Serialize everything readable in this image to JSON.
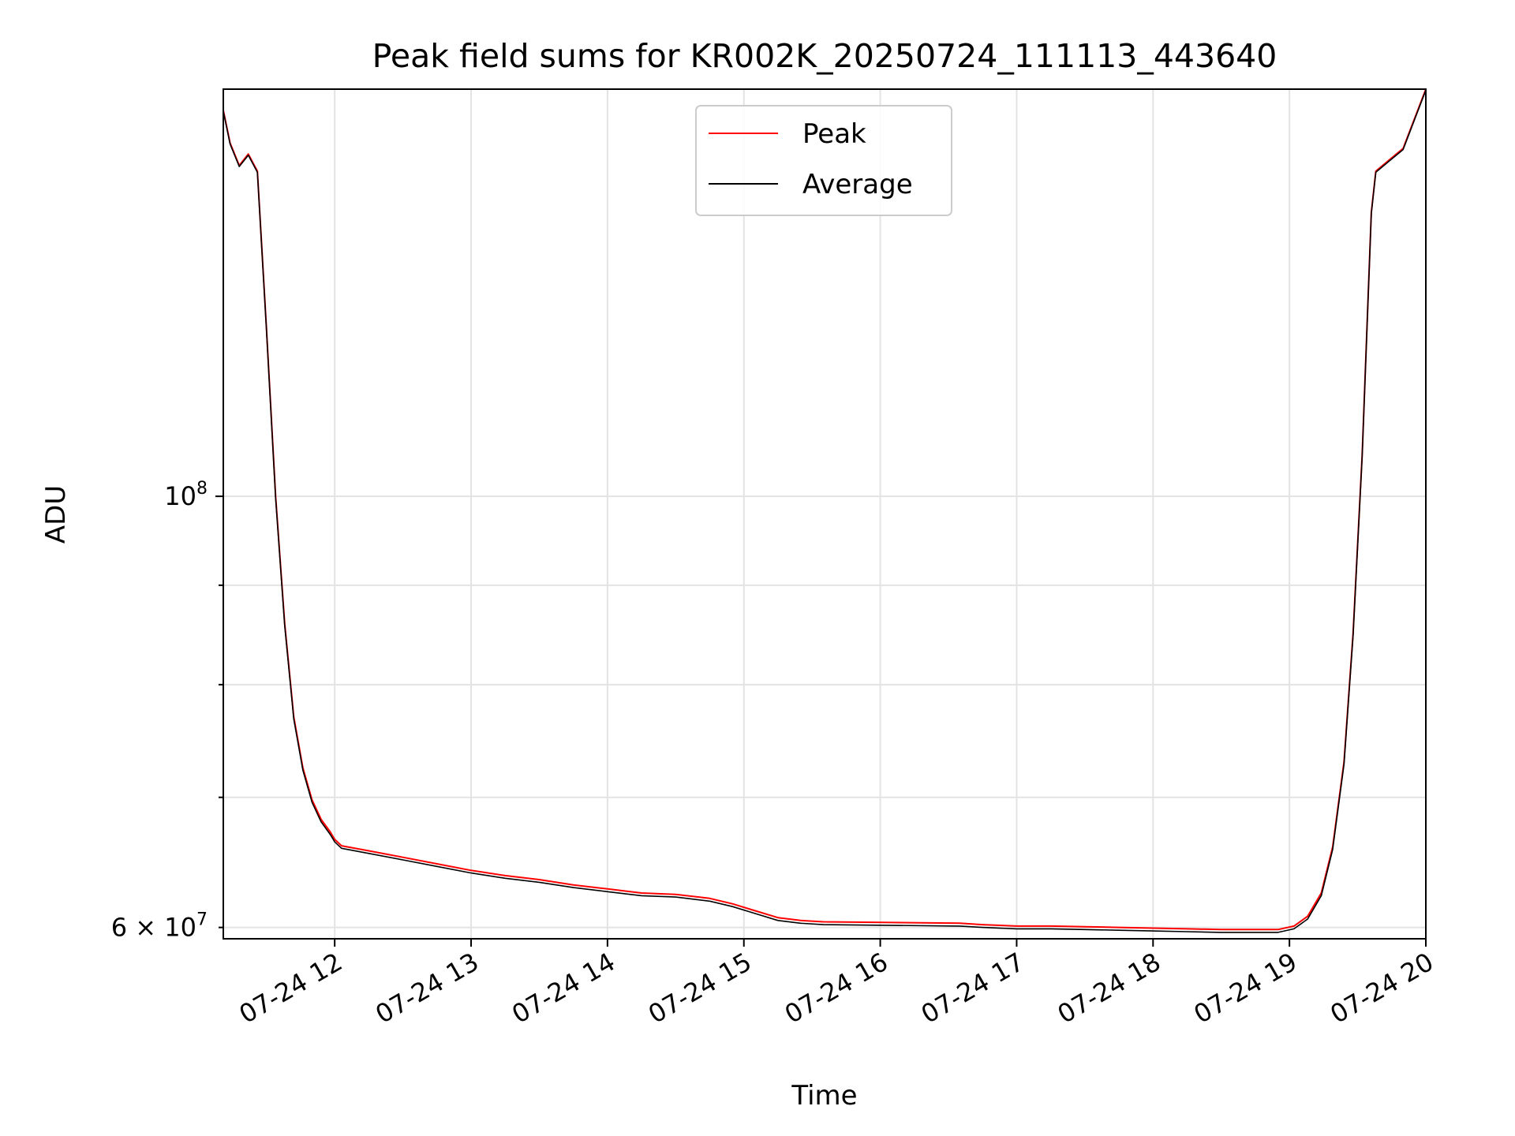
{
  "chart_data": {
    "type": "line",
    "title": "Peak field sums for KR002K_20250724_111113_443640",
    "xlabel": "Time",
    "ylabel": "ADU",
    "y_scale": "log",
    "ylim": [
      59200000,
      162000000
    ],
    "xlim": [
      "2025-07-24 11:11",
      "2025-07-24 20:00"
    ],
    "grid": true,
    "legend_position": "upper center",
    "x_tick_labels": [
      "07-24 12",
      "07-24 13",
      "07-24 14",
      "07-24 15",
      "07-24 16",
      "07-24 17",
      "07-24 18",
      "07-24 19",
      "07-24 20"
    ],
    "y_tick_labels": {
      "major": {
        "base": "10",
        "exp": "8"
      },
      "minor": {
        "mantissa": "6",
        "base": "10",
        "exp": "7"
      }
    },
    "series": [
      {
        "name": "Peak",
        "color": "#ff0000",
        "x": [
          "07-24 11:11",
          "07-24 11:14",
          "07-24 11:18",
          "07-24 11:22",
          "07-24 11:26",
          "07-24 11:30",
          "07-24 11:34",
          "07-24 11:38",
          "07-24 11:42",
          "07-24 11:46",
          "07-24 11:50",
          "07-24 11:54",
          "07-24 11:58",
          "07-24 12:00",
          "07-24 12:03",
          "07-24 12:15",
          "07-24 12:30",
          "07-24 12:45",
          "07-24 13:00",
          "07-24 13:15",
          "07-24 13:30",
          "07-24 13:45",
          "07-24 14:00",
          "07-24 14:15",
          "07-24 14:30",
          "07-24 14:45",
          "07-24 14:55",
          "07-24 15:05",
          "07-24 15:15",
          "07-24 15:25",
          "07-24 15:35",
          "07-24 16:35",
          "07-24 16:45",
          "07-24 17:00",
          "07-24 17:15",
          "07-24 17:30",
          "07-24 17:45",
          "07-24 18:00",
          "07-24 18:15",
          "07-24 18:30",
          "07-24 18:45",
          "07-24 18:55",
          "07-24 19:02",
          "07-24 19:08",
          "07-24 19:14",
          "07-24 19:19",
          "07-24 19:24",
          "07-24 19:28",
          "07-24 19:32",
          "07-24 19:36",
          "07-24 19:38",
          "07-24 19:44",
          "07-24 19:50",
          "07-24 20:00"
        ],
        "y": [
          158000000,
          152000000,
          148000000,
          150000000,
          147000000,
          122000000,
          100000000,
          86000000,
          77000000,
          72500000,
          69800000,
          68200000,
          67200000,
          66600000,
          66100000,
          65700000,
          65200000,
          64700000,
          64200000,
          63800000,
          63500000,
          63100000,
          62800000,
          62500000,
          62400000,
          62100000,
          61700000,
          61200000,
          60700000,
          60500000,
          60400000,
          60300000,
          60200000,
          60100000,
          60100000,
          60050000,
          60000000,
          59950000,
          59900000,
          59850000,
          59850000,
          59850000,
          60100000,
          60800000,
          62500000,
          66000000,
          73000000,
          85000000,
          105000000,
          140000000,
          147000000,
          149000000,
          151000000,
          162000000
        ]
      },
      {
        "name": "Average",
        "color": "#000000",
        "x": [
          "07-24 11:11",
          "07-24 11:14",
          "07-24 11:18",
          "07-24 11:22",
          "07-24 11:26",
          "07-24 11:30",
          "07-24 11:34",
          "07-24 11:38",
          "07-24 11:42",
          "07-24 11:46",
          "07-24 11:50",
          "07-24 11:54",
          "07-24 11:58",
          "07-24 12:00",
          "07-24 12:03",
          "07-24 12:15",
          "07-24 12:30",
          "07-24 12:45",
          "07-24 13:00",
          "07-24 13:15",
          "07-24 13:30",
          "07-24 13:45",
          "07-24 14:00",
          "07-24 14:15",
          "07-24 14:30",
          "07-24 14:45",
          "07-24 14:55",
          "07-24 15:05",
          "07-24 15:15",
          "07-24 15:25",
          "07-24 15:35",
          "07-24 16:35",
          "07-24 16:45",
          "07-24 17:00",
          "07-24 17:15",
          "07-24 17:30",
          "07-24 17:45",
          "07-24 18:00",
          "07-24 18:15",
          "07-24 18:30",
          "07-24 18:45",
          "07-24 18:55",
          "07-24 19:02",
          "07-24 19:08",
          "07-24 19:14",
          "07-24 19:19",
          "07-24 19:24",
          "07-24 19:28",
          "07-24 19:32",
          "07-24 19:36",
          "07-24 19:38",
          "07-24 19:44",
          "07-24 19:50",
          "07-24 20:00"
        ],
        "y": [
          157800000,
          151800000,
          147800000,
          149800000,
          146800000,
          121800000,
          99800000,
          85800000,
          76800000,
          72300000,
          69600000,
          68000000,
          67000000,
          66400000,
          65900000,
          65500000,
          65000000,
          64500000,
          64000000,
          63600000,
          63300000,
          62900000,
          62600000,
          62300000,
          62200000,
          61900000,
          61500000,
          61000000,
          60500000,
          60300000,
          60200000,
          60100000,
          60000000,
          59900000,
          59900000,
          59850000,
          59800000,
          59750000,
          59700000,
          59650000,
          59650000,
          59650000,
          59900000,
          60600000,
          62300000,
          65800000,
          72800000,
          84800000,
          104800000,
          139800000,
          146800000,
          148800000,
          150800000,
          161800000
        ]
      }
    ]
  }
}
